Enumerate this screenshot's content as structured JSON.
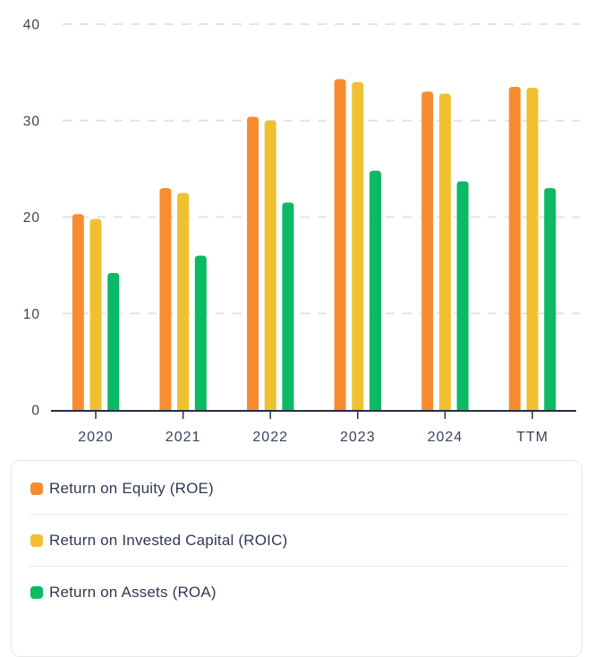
{
  "chart_data": {
    "type": "bar",
    "categories": [
      "2020",
      "2021",
      "2022",
      "2023",
      "2024",
      "TTM"
    ],
    "series": [
      {
        "name": "Return on Equity (ROE)",
        "color": "#F88C31",
        "values": [
          20.3,
          23.0,
          30.4,
          34.3,
          33.0,
          33.5
        ]
      },
      {
        "name": "Return on Invested Capital (ROIC)",
        "color": "#F0C030",
        "values": [
          19.8,
          22.5,
          30.0,
          34.0,
          32.8,
          33.4
        ]
      },
      {
        "name": "Return on Assets (ROA)",
        "color": "#0CB964",
        "values": [
          14.2,
          16.0,
          21.5,
          24.8,
          23.7,
          23.0
        ]
      }
    ],
    "title": "",
    "xlabel": "",
    "ylabel": "",
    "ylim": [
      0,
      40
    ],
    "yticks": [
      0,
      10,
      20,
      30,
      40
    ],
    "grid": "horizontal-dashed",
    "legend_position": "bottom-card"
  },
  "legend": {
    "items": [
      {
        "label": "Return on Equity (ROE)",
        "color": "#F88C31"
      },
      {
        "label": "Return on Invested Capital (ROIC)",
        "color": "#F0C030"
      },
      {
        "label": "Return on Assets (ROA)",
        "color": "#0CB964"
      }
    ]
  },
  "colors": {
    "axis": "#223049",
    "tick_label": "#3A4357",
    "grid": "#E3E3E3",
    "legend_text": "#2E3A52",
    "card_border": "#E8E8EA",
    "divider": "#ECECEC",
    "background": "#FFFFFF"
  }
}
